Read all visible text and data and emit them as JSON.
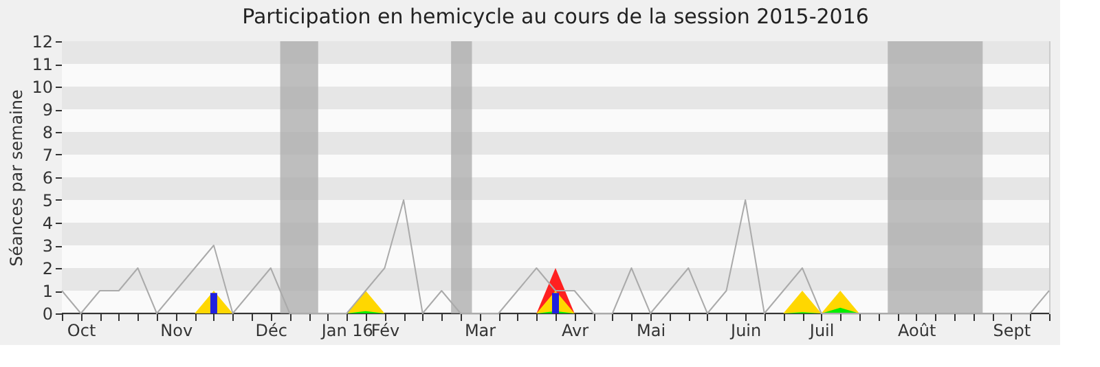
{
  "chart_data": {
    "type": "area",
    "title": "Participation en hemicycle au cours de la session 2015-2016",
    "ylabel": "Séances par semaine",
    "categories": [
      null,
      "Oct",
      null,
      null,
      null,
      null,
      "Nov",
      null,
      null,
      null,
      null,
      "Déc",
      null,
      null,
      null,
      "Jan 16",
      null,
      "Fév",
      null,
      null,
      null,
      null,
      "Mar",
      null,
      null,
      null,
      null,
      "Avr",
      null,
      null,
      null,
      "Mai",
      null,
      null,
      null,
      null,
      "Juin",
      null,
      null,
      null,
      "Juil",
      null,
      null,
      null,
      null,
      "Août",
      null,
      null,
      null,
      null,
      "Sept",
      null,
      null
    ],
    "series": [
      {
        "color": "#ff2020",
        "values": [
          0,
          0,
          0,
          0,
          0,
          0,
          0,
          0,
          0,
          0,
          0,
          0,
          0,
          0,
          0,
          0,
          0,
          0,
          0,
          0,
          0,
          0,
          0,
          0,
          0,
          0,
          2,
          0,
          0,
          0,
          0,
          0,
          0,
          0,
          0,
          0,
          0,
          0,
          0,
          0,
          0,
          0,
          0,
          0,
          0,
          0,
          0,
          0,
          0,
          0,
          0,
          0,
          0
        ]
      },
      {
        "color": "#ffd700",
        "values": [
          0,
          0,
          0,
          0,
          0,
          0,
          0,
          0,
          1,
          0,
          0,
          0,
          0,
          0,
          0,
          0,
          1,
          0,
          0,
          0,
          0,
          0,
          0,
          0,
          0,
          0,
          1,
          0,
          0,
          0,
          0,
          0,
          0,
          0,
          0,
          0,
          0,
          0,
          0,
          1,
          0,
          1,
          0,
          0,
          0,
          0,
          0,
          0,
          0,
          0,
          0,
          0,
          0
        ]
      },
      {
        "color": "#00ee00",
        "values": [
          0,
          0,
          0,
          0,
          0,
          0,
          0,
          0,
          0,
          0,
          0,
          0,
          0,
          0,
          0,
          0,
          0.1,
          0,
          0,
          0,
          0,
          0,
          0,
          0,
          0,
          0,
          0.1,
          0,
          0,
          0,
          0,
          0,
          0,
          0,
          0,
          0,
          0,
          0,
          0,
          0.05,
          0,
          0.25,
          0,
          0,
          0,
          0,
          0,
          0,
          0,
          0,
          0,
          0,
          0
        ]
      },
      {
        "type": "bar",
        "color": "#2020e0",
        "values": [
          0,
          0,
          0,
          0,
          0,
          0,
          0,
          0,
          0.9,
          0,
          0,
          0,
          0,
          0,
          0,
          0,
          0,
          0,
          0,
          0,
          0,
          0,
          0,
          0,
          0,
          0,
          0.9,
          0,
          0,
          0,
          0,
          0,
          0,
          0,
          0,
          0,
          0,
          0,
          0,
          0,
          0,
          0,
          0,
          0,
          0,
          0,
          0,
          0,
          0,
          0,
          0,
          0,
          0
        ]
      },
      {
        "type": "line",
        "color": "#aaaaaa",
        "values": [
          1,
          0,
          1,
          1,
          2,
          0,
          1,
          2,
          3,
          0,
          1,
          2,
          0,
          0,
          0,
          0,
          1,
          2,
          5,
          0,
          1,
          0,
          0,
          0,
          1,
          2,
          1,
          1,
          0,
          0,
          2,
          0,
          1,
          2,
          0,
          1,
          5,
          0,
          1,
          2,
          0,
          0,
          0,
          0,
          0,
          0,
          0,
          0,
          0,
          0,
          0,
          0,
          1
        ]
      }
    ],
    "ylim": [
      0,
      12
    ],
    "yticks": [
      0,
      1,
      2,
      3,
      4,
      5,
      6,
      7,
      8,
      9,
      10,
      11,
      12
    ]
  }
}
